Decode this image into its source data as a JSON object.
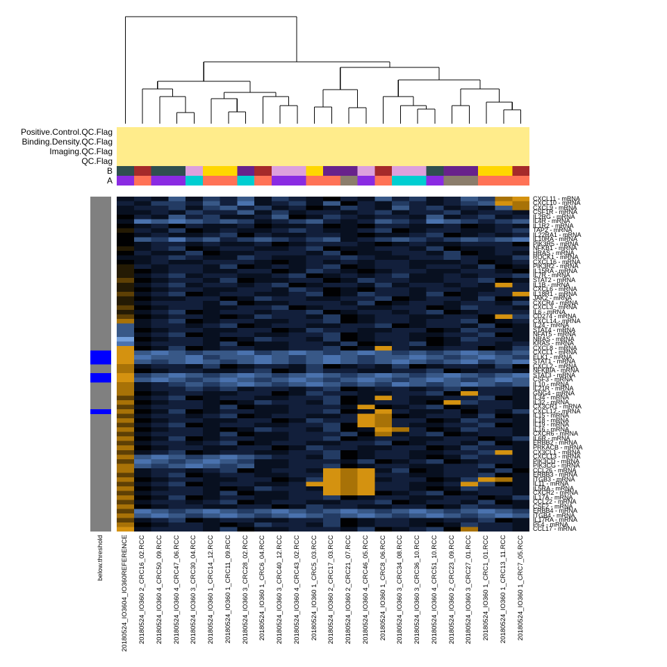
{
  "chart_data": {
    "type": "heatmap",
    "title": "",
    "columns": [
      "20180524_IO3604_IO360REFERENCE",
      "20180524_IO360 2_CRC16_02.RCC",
      "20180524_IO360 4_CRC50_09.RCC",
      "20180524_IO360 4_CRC47_06.RCC",
      "20180524_IO360 3_CRC30_04.RCC",
      "20180524_IO360 1_CRC14_12.RCC",
      "20180524_IO360 1_CRC11_09.RCC",
      "20180524_IO360 3_CRC28_02.RCC",
      "20180524_IO360 1_CRC6_04.RCC",
      "20180524_IO360 3_CRC40_12.RCC",
      "20180524_IO360 4_CRC43_02.RCC",
      "20180524_IO360 1_CRC5_03.RCC",
      "20180524_IO360 2_CRC17_03.RCC",
      "20180524_IO360 2_CRC21_07.RCC",
      "20180524_IO360 4_CRC46_05.RCC",
      "20180524_IO360 1_CRC8_06.RCC",
      "20180524_IO360 3_CRC34_08.RCC",
      "20180524_IO360 3_CRC36_10.RCC",
      "20180524_IO360 4_CRC51_10.RCC",
      "20180524_IO360 2_CRC23_09.RCC",
      "20180524_IO360 3_CRC27_01.RCC",
      "20180524_IO360 1_CRC1_01.RCC",
      "20180524_IO360 1_CRC13_11.RCC",
      "20180524_IO360 1_CRC7_05.RCC"
    ],
    "rows": [
      "CXCL11 - mRNA",
      "CXCL10 - mRNA",
      "CXCL9 - mRNA",
      "CSF1R - mRNA",
      "IL2RG - mRNA",
      "IL4R - mRNA",
      "IL1R2 - mRNA",
      "TAP2 - mRNA",
      "IL22RA1 - mRNA",
      "IL10RA - mRNA",
      "PIK3R5 - mRNA",
      "NFKB1 - mRNA",
      "HRAS - mRNA",
      "ROCK1 - mRNA",
      "CXCL16 - mRNA",
      "PIK3R2 - mRNA",
      "IL15RA - mRNA",
      "IL7R - mRNA",
      "STAT2 - mRNA",
      "IL1B - mRNA",
      "CXCL6 - mRNA",
      "IL18R1 - mRNA",
      "JAK2 - mRNA",
      "CXCR4 - mRNA",
      "CXCL3 - mRNA",
      "IL6 - mRNA",
      "CD274 - mRNA",
      "CXCL14 - mRNA",
      "IL24 - mRNA",
      "STAT4 - mRNA",
      "NFAT5 - mRNA",
      "NRAS - mRNA",
      "KRAS - mRNA",
      "CXCL8 - mRNA",
      "CXCL1 - mRNA",
      "ELK1 - mRNA",
      "STAT1 - mRNA",
      "CXCL2 - mRNA",
      "NFKBIA - mRNA",
      "STAT3 - mRNA",
      "CSF3 - mRNA",
      "IL10 - mRNA",
      "IL21R - mRNA",
      "GNG4 - mRNA",
      "IL34 - mRNA",
      "IL32 - mRNA",
      "CX3CR1 - mRNA",
      "CXCL12 - mRNA",
      "IL15 - mRNA",
      "IL18 - mRNA",
      "IL19 - mRNA",
      "IL16 - mRNA",
      "CXCR6 - mRNA",
      "IL6R - mRNA",
      "ERBB2 - mRNA",
      "PRKACB - mRNA",
      "CX3CL1 - mRNA",
      "CXCL13 - mRNA",
      "PIK3CD - mRNA",
      "PIK3CG - mRNA",
      "CCL26 - mRNA",
      "ERBB3 - mRNA",
      "ITGB3 - mRNA",
      "IL11 - mRNA",
      "IL5RA - mRNA",
      "CXCR2 - mRNA",
      "IL17A - mRNA",
      "CCL22 - mRNA",
      "CSF2 - mRNA",
      "ERBB4 - mRNA",
      "ITGB4 - mRNA",
      "IL17RA - mRNA",
      "PF4 - mRNA",
      "CCL17 - mRNA"
    ],
    "cells": [
      "54525342534564524354239a",
      "4533424154352645345432a9",
      "544353243546534524354529",
      "554534425354454354435445",
      "645243554265345445254354",
      "512123235432454234123432",
      "654645546554656445546545",
      "745365455434554365445543",
      "654554364554456554365454",
      "623132432343254323432321",
      "654454554654445654554446",
      "754365445543655445365544",
      "645536554445365544536545",
      "554345534554434554434553",
      "654554445654545445554654",
      "745445365454365445445365",
      "765445544653456544554456",
      "754354455436545435545443",
      "865445365544653445544365",
      "7543544543654453544545a4",
      "765445544534656445445544",
      "85436544554365344536544a",
      "765544653445544365445365",
      "754445365544453654454453",
      "865445544365445544653445",
      "754365445443654454365444",
      "8654456534453654455446a3",
      "954365445544365445443654",
      "254454365445544365445365",
      "265445544653445544653445",
      "254365445544365445544365",
      "065445653445365445653445",
      "154445365544536543654454",
      "a65365445544365a45544653",
      "a21232213212321232321232",
      "a12213221232123221232123",
      "a23212321232123212321321",
      "954453654453654536544536",
      "965445543653445544365445",
      "a32123212321232123212321",
      "a21232123212321232123212",
      "954323212321232312321232",
      "954434354454365445435445",
      "96544554465344554436a445",
      "854365445544365a45544365",
      "9654456534453654456a3445",
      "85444536554445a654365445",
      "965365445544365a45546453",
      "85445436544554a965445365",
      "96544554465344a944653445",
      "85436544554436a945544365",
      "965445653445365a94653445",
      "854445365544436954365445",
      "965365445544365445544653",
      "854454365445544365445365",
      "965445544653445544653445",
      "8543654455443654455443a5",
      "921232123445365445653445",
      "812321235544453654365445",
      "923212325544365445544365",
      "954454365445a9a536544536",
      "854365445544a9a445544365",
      "965445544653a9a544653a95",
      "85436544554aa9a44554a365",
      "965445653445a9a445653445",
      "854445365544a9a654365445",
      "965365445544365445544653",
      "854454365445544365445365",
      "965445544653445544653445",
      "812321232123212321232123",
      "921232123212321232123212",
      "854365445544365445544365",
      "965445653445365445653445",
      "a54445365544453654369445"
    ],
    "value_palette": {
      "0": "#74A0DC",
      "1": "#4A72AE",
      "2": "#385887",
      "3": "#233B63",
      "4": "#121F3B",
      "5": "#081020",
      "6": "#010102",
      "7": "#241A04",
      "8": "#5E4005",
      "9": "#A87207",
      "a": "#D49210"
    },
    "column_annotations": {
      "labels": [
        "Positive.Control.QC.Flag",
        "Binding.Density.QC.Flag",
        "Imaging.QC.Flag",
        "QC.Flag",
        "B",
        "A"
      ],
      "qc_flag_color": "#FFEC8B",
      "B": [
        "#2F4F4F",
        "#A52A2A",
        "#2F4F4F",
        "#2F4F4F",
        "#DDA0DD",
        "#FFD700",
        "#FFD700",
        "#68228B",
        "#A52A2A",
        "#DDA0DD",
        "#DDA0DD",
        "#FFD700",
        "#68228B",
        "#68228B",
        "#DDA0DD",
        "#A52A2A",
        "#DDA0DD",
        "#DDA0DD",
        "#2F4F4F",
        "#68228B",
        "#68228B",
        "#FFD700",
        "#FFD700",
        "#A52A2A"
      ],
      "A": [
        "#8A2BE2",
        "#FF7256",
        "#8A2BE2",
        "#8A2BE2",
        "#00CED1",
        "#FF7256",
        "#FF7256",
        "#00CED1",
        "#FF7256",
        "#8A2BE2",
        "#8A2BE2",
        "#FF7256",
        "#FF7256",
        "#8B7D6B",
        "#8A2BE2",
        "#FF7256",
        "#00CED1",
        "#00CED1",
        "#8A2BE2",
        "#8B7D6B",
        "#8B7D6B",
        "#FF7256",
        "#FF7256",
        "#FF7256"
      ]
    },
    "row_annotation": {
      "label": "below.threshold",
      "base_color": "#808080",
      "flag_color": "#0000FF",
      "flagged_rows": [
        34,
        35,
        36,
        39,
        40,
        47
      ]
    },
    "dendrogram": {
      "line_color": "#000000",
      "merges": [
        [
          "L3",
          "L4",
          154
        ],
        [
          "L2",
          "N0",
          131
        ],
        [
          "L1",
          "N1",
          120
        ],
        [
          "L6",
          "L7",
          153
        ],
        [
          "L5",
          "N3",
          134
        ],
        [
          "L9",
          "L10",
          144
        ],
        [
          "L8",
          "N5",
          131
        ],
        [
          "N4",
          "N6",
          125
        ],
        [
          "N2",
          "N7",
          109
        ],
        [
          "L11",
          "L12",
          146
        ],
        [
          "L13",
          "L14",
          147
        ],
        [
          "N9",
          "N10",
          121
        ],
        [
          "L17",
          "L18",
          149
        ],
        [
          "L16",
          "N12",
          144
        ],
        [
          "L15",
          "N13",
          131
        ],
        [
          "L19",
          "L20",
          144
        ],
        [
          "L22",
          "L23",
          150
        ],
        [
          "L21",
          "N16",
          139
        ],
        [
          "N15",
          "N17",
          120
        ],
        [
          "N14",
          "N18",
          107
        ],
        [
          "N11",
          "N19",
          89
        ],
        [
          "N8",
          "N20",
          81
        ],
        [
          "L0",
          "N21",
          16
        ]
      ]
    }
  }
}
